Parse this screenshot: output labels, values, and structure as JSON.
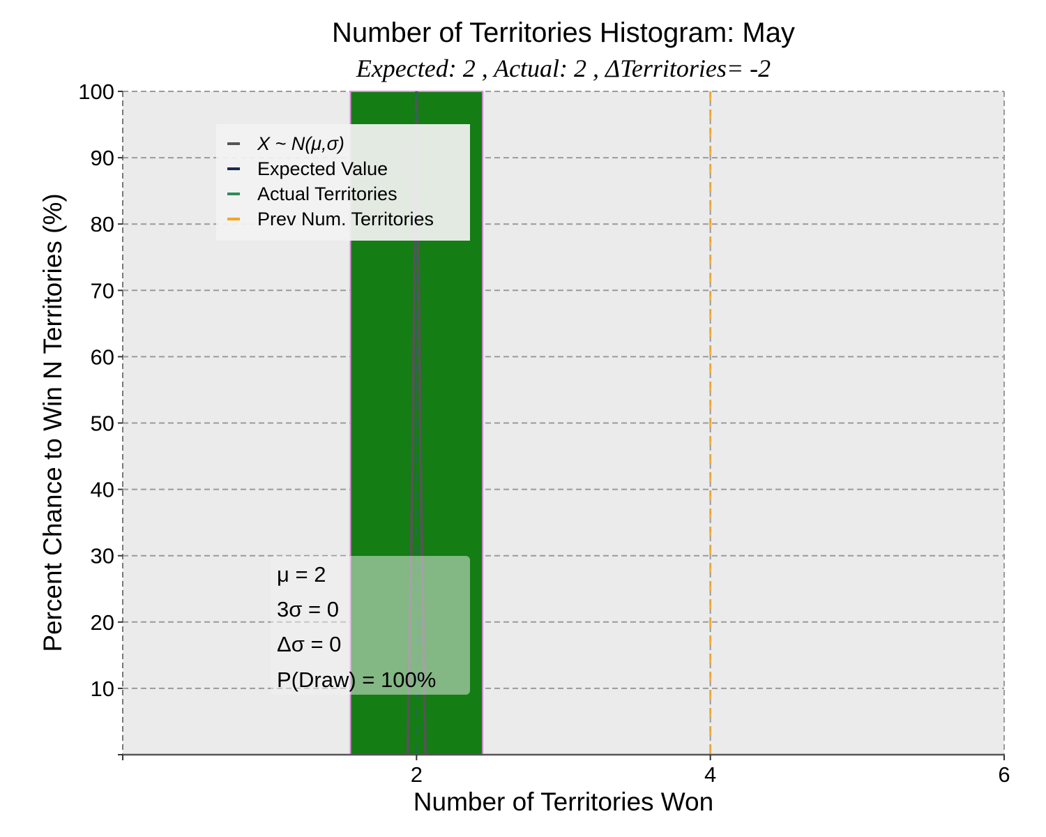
{
  "chart_data": {
    "type": "bar",
    "title": "Number of Territories Histogram: May",
    "subtitle": "Expected: 2 , Actual: 2 , ΔTerritories= -2",
    "xlabel": "Number of Territories Won",
    "ylabel": "Percent Chance to Win N Territories (%)",
    "xlim": [
      0,
      6
    ],
    "ylim": [
      0,
      100
    ],
    "xticks": [
      2,
      4,
      6
    ],
    "yticks": [
      10,
      20,
      30,
      40,
      50,
      60,
      70,
      80,
      90,
      100
    ],
    "grid": true,
    "bars": [
      {
        "x": 2,
        "width": 0.9,
        "value": 100,
        "color": "#147d14",
        "edge_color": "#dd88dd"
      }
    ],
    "series": [
      {
        "name": "X ~ N(μ,σ)",
        "type": "line",
        "color": "#555555",
        "x": [
          1.94,
          1.97,
          2.0,
          2.03,
          2.06
        ],
        "y": [
          0,
          40,
          100,
          40,
          0
        ]
      },
      {
        "name": "Expected Value",
        "type": "vline",
        "x": 2,
        "color": "#1a2a50"
      },
      {
        "name": "Actual Territories",
        "type": "vline",
        "x": 2,
        "color": "#2e8b57"
      },
      {
        "name": "Prev Num. Territories",
        "type": "vline",
        "x": 4,
        "color": "#f5a623"
      }
    ],
    "legend": {
      "placement": "upper-left",
      "entries": [
        {
          "label": "X ~ N(μ,σ)",
          "color": "#555555",
          "italic": true
        },
        {
          "label": "Expected Value",
          "color": "#1a2a50",
          "italic": false
        },
        {
          "label": "Actual Territories",
          "color": "#2e8b57",
          "italic": false
        },
        {
          "label": "Prev Num. Territories",
          "color": "#f5a623",
          "italic": false
        }
      ]
    },
    "stats_box": {
      "placement": "lower-left",
      "mu_label": "μ = 2",
      "sigma3_label": "3σ = 0",
      "dsigma_label": "Δσ = 0",
      "pdraw_label": "P(Draw) = 100%"
    },
    "colors": {
      "plot_background": "#ebebeb",
      "grid": "#9a9a9a",
      "bar": "#147d14"
    }
  }
}
